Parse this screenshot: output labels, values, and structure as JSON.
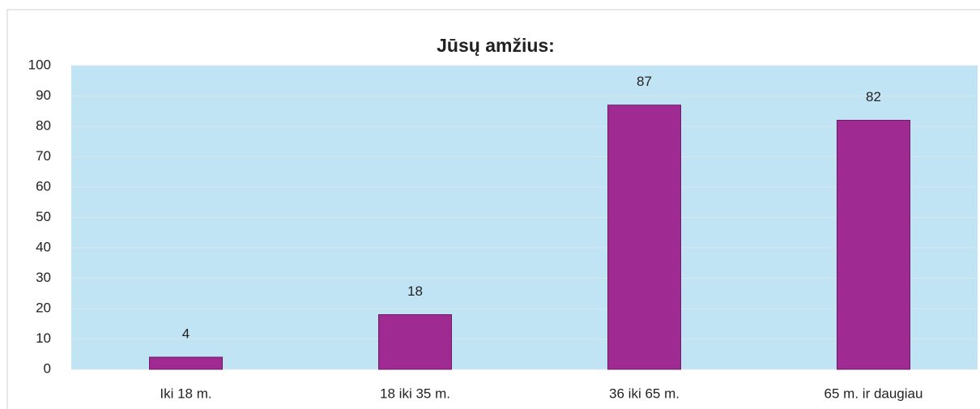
{
  "chart_data": {
    "type": "bar",
    "title": "Jūsų amžius:",
    "categories": [
      "Iki 18 m.",
      "18 iki 35 m.",
      "36 iki 65 m.",
      "65 m. ir daugiau"
    ],
    "values": [
      4,
      18,
      87,
      82
    ],
    "color": "#9e2a92",
    "ylim": [
      0,
      100
    ],
    "yticks": [
      0,
      10,
      20,
      30,
      40,
      50,
      60,
      70,
      80,
      90,
      100
    ],
    "grid": true
  }
}
